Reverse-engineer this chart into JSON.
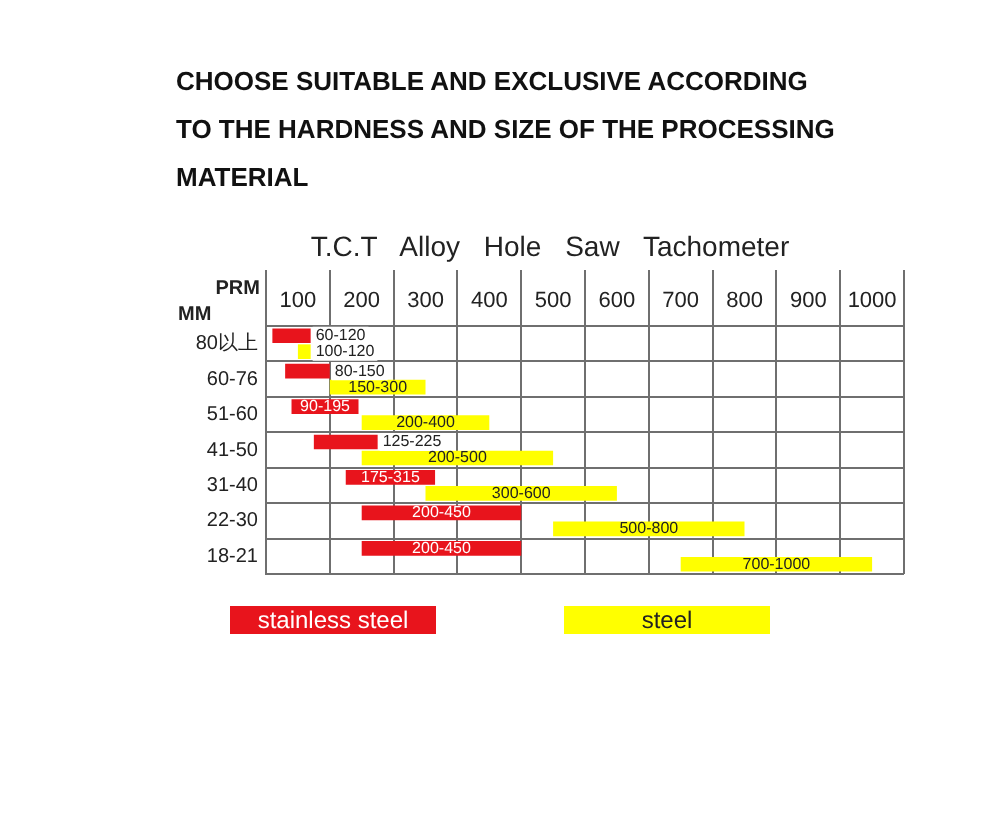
{
  "chart_data": {
    "type": "bar",
    "orientation": "horizontal",
    "title": "CHOOSE SUITABLE AND EXCLUSIVE ACCORDING TO THE HARDNESS AND SIZE OF THE PROCESSING MATERIAL",
    "subtitle": "T.C.T Alloy Hole Saw Tachometer",
    "xlabel": "PRM",
    "ylabel": "MM",
    "categories": [
      "80以上",
      "60-76",
      "51-60",
      "41-50",
      "31-40",
      "22-30",
      "18-21"
    ],
    "series": [
      {
        "name": "stainless steel",
        "color": "#e8141c",
        "base": [
          60,
          80,
          90,
          125,
          175,
          200,
          200
        ],
        "values": [
          60,
          70,
          105,
          100,
          140,
          250,
          250
        ],
        "value_labels": [
          "60-120",
          "80-150",
          "90-195",
          "125-225",
          "175-315",
          "200-450",
          "200-450"
        ]
      },
      {
        "name": "steel",
        "color": "#ffff00",
        "base": [
          100,
          150,
          200,
          200,
          300,
          500,
          700
        ],
        "values": [
          20,
          150,
          200,
          300,
          300,
          300,
          300
        ],
        "value_labels": [
          "100-120",
          "150-300",
          "200-400",
          "200-500",
          "300-600",
          "500-800",
          "700-1000"
        ]
      }
    ],
    "xlim": [
      50,
      1050
    ],
    "xticks": [
      {
        "value": 50,
        "label": null
      },
      100,
      {
        "value": 150,
        "label": null
      },
      200,
      {
        "value": 250,
        "label": null
      },
      300,
      {
        "value": 350,
        "label": null
      },
      400,
      {
        "value": 450,
        "label": null
      },
      500,
      {
        "value": 550,
        "label": null
      },
      600,
      {
        "value": 650,
        "label": null
      },
      700,
      {
        "value": 750,
        "label": null
      },
      800,
      {
        "value": 850,
        "label": null
      },
      900,
      {
        "value": 950,
        "label": null
      },
      1000,
      {
        "value": 1050,
        "label": null
      }
    ],
    "grid": true,
    "legend": "bottom"
  }
}
